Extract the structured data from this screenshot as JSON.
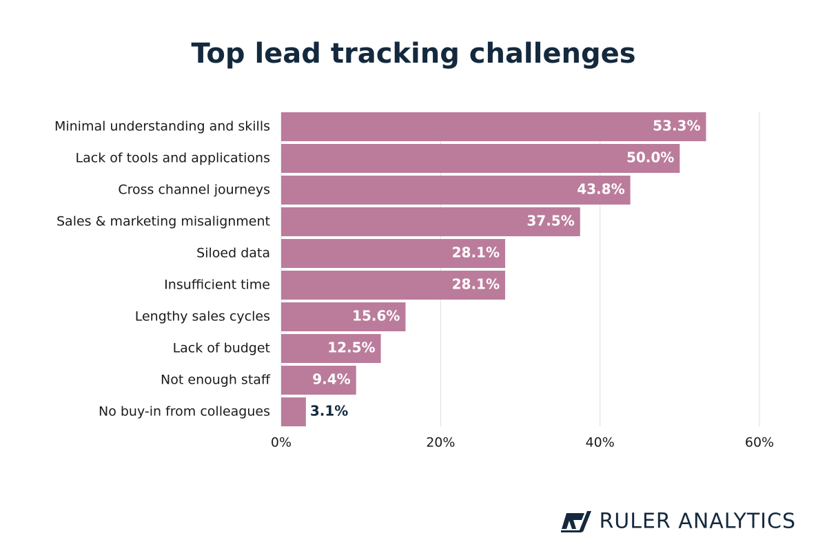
{
  "chart_data": {
    "type": "barh",
    "title": "Top lead tracking challenges",
    "categories": [
      "Minimal understanding and skills",
      "Lack of tools and applications",
      "Cross channel journeys",
      "Sales & marketing misalignment",
      "Siloed data",
      "Insufficient time",
      "Lengthy sales cycles",
      "Lack of budget",
      "Not enough staff",
      "No buy-in from colleagues"
    ],
    "values": [
      53.3,
      50.0,
      43.8,
      37.5,
      28.1,
      28.1,
      15.6,
      12.5,
      9.4,
      3.1
    ],
    "value_labels": [
      "53.3%",
      "50.0%",
      "43.8%",
      "37.5%",
      "28.1%",
      "28.1%",
      "15.6%",
      "12.5%",
      "9.4%",
      "3.1%"
    ],
    "color": "#bb7c9b",
    "xlim": [
      0,
      60
    ],
    "xticks": [
      {
        "value": 0,
        "label": "0%"
      },
      {
        "value": 20,
        "label": "20%"
      },
      {
        "value": 40,
        "label": "40%"
      },
      {
        "value": 60,
        "label": "60%"
      }
    ],
    "grid": true
  },
  "brand": "RULER ANALYTICS"
}
